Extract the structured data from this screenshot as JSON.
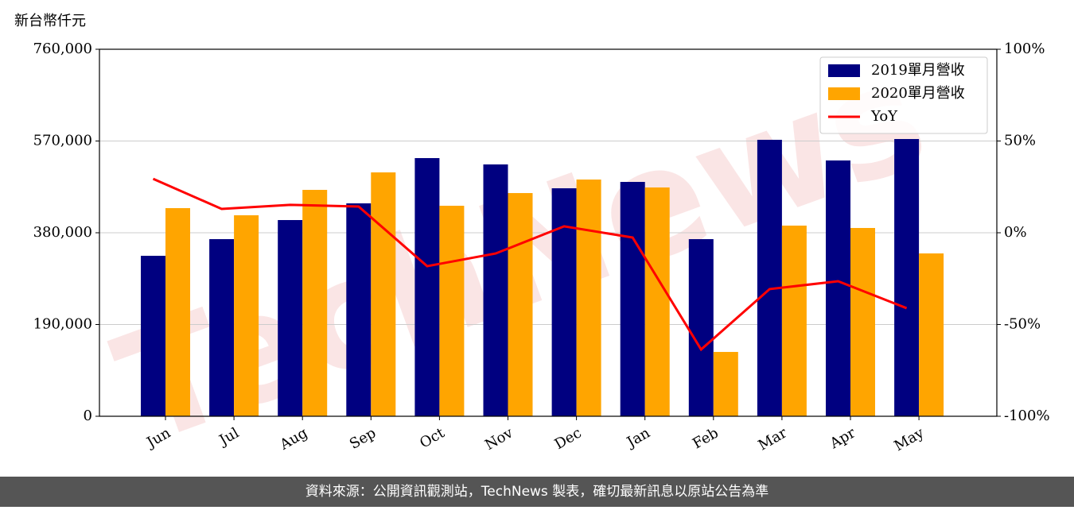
{
  "chart_data": {
    "type": "bar-line",
    "y_unit_label": "新台幣仟元",
    "footer": "資料來源：公開資訊觀測站，TechNews 製表，確切最新訊息以原站公告為準",
    "watermark": "TechNews",
    "categories": [
      "Jun",
      "Jul",
      "Aug",
      "Sep",
      "Oct",
      "Nov",
      "Dec",
      "Jan",
      "Feb",
      "Mar",
      "Apr",
      "May"
    ],
    "series": [
      {
        "name": "2019單月營收",
        "color": "#000080",
        "values": [
          332300,
          366800,
          406300,
          440900,
          534600,
          521500,
          472100,
          485300,
          366800,
          572500,
          529700,
          574100
        ]
      },
      {
        "name": "2020單月營收",
        "color": "#ffa500",
        "values": [
          431000,
          416200,
          468800,
          505000,
          435900,
          462200,
          490200,
          473800,
          133200,
          394800,
          389900,
          337200
        ]
      },
      {
        "name": "YoY",
        "color": "#ff0000",
        "axis": "y2",
        "values": [
          29.4,
          13.0,
          15.2,
          14.3,
          -18.2,
          -11.3,
          3.5,
          -2.6,
          -63.6,
          -30.7,
          -26.4,
          -41.1
        ]
      }
    ],
    "ylim": [
      0,
      760000
    ],
    "yticks": [
      0,
      {
        "value": 190000,
        "label": "190,000"
      },
      {
        "value": 380000,
        "label": "380,000"
      },
      {
        "value": 570000,
        "label": "570,000"
      },
      {
        "value": 760000,
        "label": "760,000"
      }
    ],
    "y2lim": [
      -100,
      100
    ],
    "y2ticks": [
      {
        "value": -100,
        "label": "-100%"
      },
      {
        "value": -50,
        "label": "-50%"
      },
      {
        "value": 0,
        "label": "0%"
      },
      {
        "value": 50,
        "label": "50%"
      },
      {
        "value": 100,
        "label": "100%"
      }
    ],
    "grid": true,
    "legend": "upper right"
  }
}
